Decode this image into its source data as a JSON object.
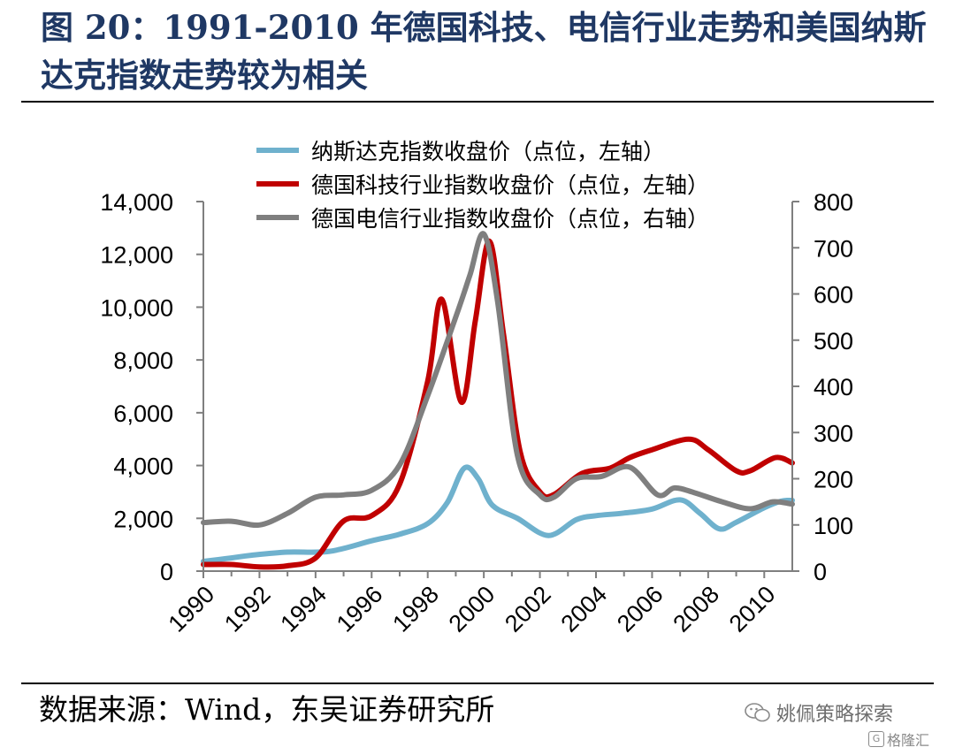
{
  "title": "图 20：1991-2010 年德国科技、电信行业走势和美国纳斯达克指数走势较为相关",
  "source": "数据来源：Wind，东吴证券研究所",
  "watermark": "姚佩策略探索",
  "watermark2": "格隆汇",
  "watermark2_badge": "G",
  "chart_data": {
    "type": "line",
    "legend_position": "top-center",
    "grid": false,
    "x_ticks": [
      "1990",
      "1992",
      "1994",
      "1996",
      "1998",
      "2000",
      "2002",
      "2004",
      "2006",
      "2008",
      "2010"
    ],
    "xlim": [
      1990,
      2011
    ],
    "ylim_left": [
      0,
      14000
    ],
    "ylim_right": [
      0,
      800
    ],
    "y_ticks_left": [
      "0",
      "2,000",
      "4,000",
      "6,000",
      "8,000",
      "10,000",
      "12,000",
      "14,000"
    ],
    "y_ticks_right": [
      "0",
      "100",
      "200",
      "300",
      "400",
      "500",
      "600",
      "700",
      "800"
    ],
    "series": [
      {
        "name": "纳斯达克指数收盘价（点位，左轴）",
        "axis": "left",
        "color": "#6fb1cd",
        "points": [
          [
            1990,
            370
          ],
          [
            1991,
            500
          ],
          [
            1991.7,
            600
          ],
          [
            1993,
            720
          ],
          [
            1994.5,
            750
          ],
          [
            1996,
            1150
          ],
          [
            1997,
            1400
          ],
          [
            1998,
            1800
          ],
          [
            1998.7,
            2600
          ],
          [
            1999.3,
            3900
          ],
          [
            1999.8,
            3500
          ],
          [
            2000.3,
            2500
          ],
          [
            2001.2,
            2000
          ],
          [
            2002.3,
            1350
          ],
          [
            2003.3,
            1950
          ],
          [
            2004,
            2100
          ],
          [
            2005,
            2200
          ],
          [
            2006,
            2350
          ],
          [
            2007,
            2700
          ],
          [
            2007.7,
            2200
          ],
          [
            2008.4,
            1600
          ],
          [
            2009,
            1850
          ],
          [
            2010,
            2400
          ],
          [
            2010.6,
            2650
          ],
          [
            2011,
            2680
          ]
        ]
      },
      {
        "name": "德国科技行业指数收盘价（点位，左轴）",
        "axis": "left",
        "color": "#c00000",
        "points": [
          [
            1990,
            250
          ],
          [
            1991,
            250
          ],
          [
            1992,
            160
          ],
          [
            1993,
            200
          ],
          [
            1994,
            500
          ],
          [
            1995,
            1900
          ],
          [
            1996,
            2100
          ],
          [
            1997,
            3300
          ],
          [
            1998,
            7200
          ],
          [
            1998.5,
            10300
          ],
          [
            1999.2,
            6400
          ],
          [
            1999.7,
            9500
          ],
          [
            2000.2,
            12500
          ],
          [
            2000.7,
            9000
          ],
          [
            2001.3,
            4500
          ],
          [
            2002,
            3000
          ],
          [
            2002.5,
            2900
          ],
          [
            2003.5,
            3700
          ],
          [
            2004.5,
            3900
          ],
          [
            2005.2,
            4300
          ],
          [
            2006,
            4600
          ],
          [
            2007.3,
            5000
          ],
          [
            2008,
            4600
          ],
          [
            2009,
            3800
          ],
          [
            2009.5,
            3800
          ],
          [
            2010.4,
            4300
          ],
          [
            2011,
            4100
          ]
        ]
      },
      {
        "name": "德国电信行业指数收盘价（点位，右轴）",
        "axis": "right",
        "color": "#7f7f7f",
        "points": [
          [
            1990,
            105
          ],
          [
            1991,
            108
          ],
          [
            1992,
            100
          ],
          [
            1993,
            125
          ],
          [
            1994,
            160
          ],
          [
            1995,
            165
          ],
          [
            1996,
            175
          ],
          [
            1997,
            230
          ],
          [
            1998,
            380
          ],
          [
            1999,
            550
          ],
          [
            1999.5,
            640
          ],
          [
            2000,
            730
          ],
          [
            2000.5,
            580
          ],
          [
            2001.2,
            250
          ],
          [
            2002,
            165
          ],
          [
            2002.5,
            160
          ],
          [
            2003.3,
            200
          ],
          [
            2004.2,
            205
          ],
          [
            2005.2,
            225
          ],
          [
            2006.2,
            165
          ],
          [
            2006.8,
            180
          ],
          [
            2007.5,
            170
          ],
          [
            2008.5,
            150
          ],
          [
            2009.5,
            135
          ],
          [
            2010.3,
            150
          ],
          [
            2011,
            145
          ]
        ]
      }
    ]
  }
}
